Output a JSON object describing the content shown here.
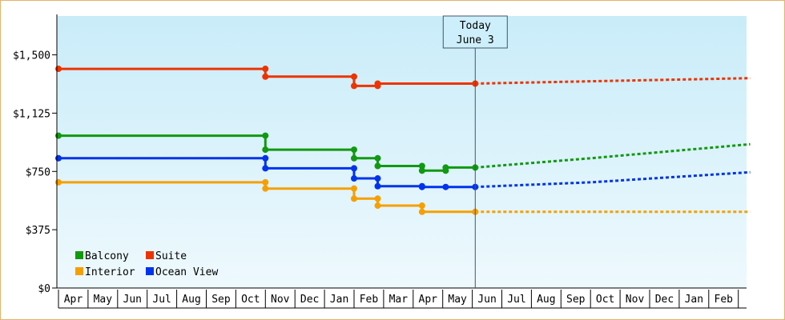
{
  "chart_data": {
    "type": "line",
    "step": true,
    "y_ticks": [
      {
        "value": 0,
        "label": "$0"
      },
      {
        "value": 375,
        "label": "$375"
      },
      {
        "value": 750,
        "label": "$750"
      },
      {
        "value": 1125,
        "label": "$1,125"
      },
      {
        "value": 1500,
        "label": "$1,500"
      }
    ],
    "ylim": [
      0,
      1750
    ],
    "month_labels": [
      "Apr",
      "May",
      "Jun",
      "Jul",
      "Aug",
      "Sep",
      "Oct",
      "Nov",
      "Dec",
      "Jan",
      "Feb",
      "Mar",
      "Apr",
      "May",
      "Jun",
      "Jul",
      "Aug",
      "Sep",
      "Oct",
      "Nov",
      "Dec",
      "Jan",
      "Feb"
    ],
    "xlim": [
      0,
      23.4
    ],
    "today": {
      "line1": "Today",
      "line2": "June 3",
      "x": 14.1
    },
    "grid": false,
    "legend_position": "bottom-left",
    "series": [
      {
        "name": "Balcony",
        "color": "#119911",
        "points": [
          [
            0,
            980
          ],
          [
            7.0,
            980
          ],
          [
            7.0,
            890
          ],
          [
            10.0,
            890
          ],
          [
            10.0,
            835
          ],
          [
            10.8,
            835
          ],
          [
            10.8,
            785
          ],
          [
            12.3,
            785
          ],
          [
            12.3,
            755
          ],
          [
            13.1,
            755
          ],
          [
            13.1,
            775
          ],
          [
            14.1,
            775
          ]
        ],
        "markers": [
          [
            0,
            980
          ],
          [
            7.0,
            980
          ],
          [
            7.0,
            890
          ],
          [
            10.0,
            890
          ],
          [
            10.0,
            835
          ],
          [
            10.8,
            835
          ],
          [
            10.8,
            785
          ],
          [
            12.3,
            785
          ],
          [
            12.3,
            755
          ],
          [
            13.1,
            755
          ],
          [
            13.1,
            775
          ],
          [
            14.1,
            775
          ]
        ],
        "forecast": [
          [
            14.1,
            775
          ],
          [
            18.0,
            835
          ],
          [
            23.4,
            925
          ]
        ]
      },
      {
        "name": "Suite",
        "color": "#ee3300",
        "points": [
          [
            0,
            1410
          ],
          [
            7.0,
            1410
          ],
          [
            7.0,
            1360
          ],
          [
            10.0,
            1360
          ],
          [
            10.0,
            1300
          ],
          [
            10.8,
            1300
          ],
          [
            10.8,
            1315
          ],
          [
            14.1,
            1315
          ]
        ],
        "markers": [
          [
            0,
            1410
          ],
          [
            7.0,
            1410
          ],
          [
            7.0,
            1360
          ],
          [
            10.0,
            1360
          ],
          [
            10.0,
            1300
          ],
          [
            10.8,
            1300
          ],
          [
            10.8,
            1315
          ],
          [
            14.1,
            1315
          ]
        ],
        "forecast": [
          [
            14.1,
            1315
          ],
          [
            18.0,
            1330
          ],
          [
            23.4,
            1350
          ]
        ]
      },
      {
        "name": "Interior",
        "color": "#f5a000",
        "points": [
          [
            0,
            680
          ],
          [
            7.0,
            680
          ],
          [
            7.0,
            640
          ],
          [
            10.0,
            640
          ],
          [
            10.0,
            575
          ],
          [
            10.8,
            575
          ],
          [
            10.8,
            530
          ],
          [
            12.3,
            530
          ],
          [
            12.3,
            490
          ],
          [
            14.1,
            490
          ]
        ],
        "markers": [
          [
            0,
            680
          ],
          [
            7.0,
            680
          ],
          [
            7.0,
            640
          ],
          [
            10.0,
            640
          ],
          [
            10.0,
            575
          ],
          [
            10.8,
            575
          ],
          [
            10.8,
            530
          ],
          [
            12.3,
            530
          ],
          [
            12.3,
            490
          ],
          [
            14.1,
            490
          ]
        ],
        "forecast": [
          [
            14.1,
            490
          ],
          [
            23.4,
            490
          ]
        ]
      },
      {
        "name": "Ocean View",
        "color": "#0033ee",
        "points": [
          [
            0,
            835
          ],
          [
            7.0,
            835
          ],
          [
            7.0,
            770
          ],
          [
            10.0,
            770
          ],
          [
            10.0,
            705
          ],
          [
            10.8,
            705
          ],
          [
            10.8,
            655
          ],
          [
            12.3,
            655
          ],
          [
            12.3,
            650
          ],
          [
            14.1,
            650
          ]
        ],
        "markers": [
          [
            0,
            835
          ],
          [
            7.0,
            835
          ],
          [
            7.0,
            770
          ],
          [
            10.0,
            770
          ],
          [
            10.0,
            705
          ],
          [
            10.8,
            705
          ],
          [
            10.8,
            655
          ],
          [
            12.3,
            655
          ],
          [
            12.3,
            650
          ],
          [
            13.1,
            650
          ],
          [
            14.1,
            650
          ]
        ],
        "forecast": [
          [
            14.1,
            650
          ],
          [
            18.0,
            680
          ],
          [
            23.4,
            745
          ]
        ]
      }
    ],
    "legend_order": [
      "Balcony",
      "Suite",
      "Interior",
      "Ocean View"
    ]
  }
}
